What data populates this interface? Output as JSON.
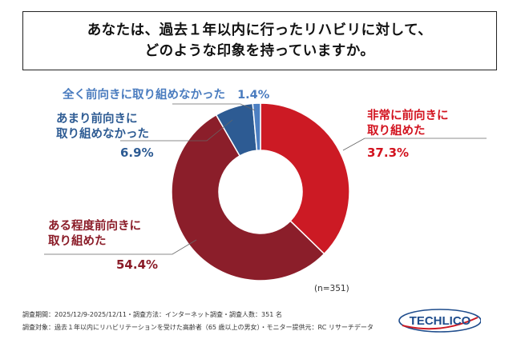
{
  "title": {
    "line1": "あなたは、過去１年以内に行ったリハビリに対して、",
    "line2": "どのような印象を持っていますか。"
  },
  "chart_data": {
    "type": "pie",
    "donut": true,
    "slices": [
      {
        "label": "非常に前向きに取り組めた",
        "label_lines": [
          "非常に前向きに",
          "取り組めた"
        ],
        "value": 37.3,
        "value_text": "37.3%",
        "color": "#cc1a24",
        "text_color": "#d2121e"
      },
      {
        "label": "ある程度前向きに取り組めた",
        "label_lines": [
          "ある程度前向きに",
          "取り組めた"
        ],
        "value": 54.4,
        "value_text": "54.4%",
        "color": "#8b1e2a",
        "text_color": "#8a1b27"
      },
      {
        "label": "あまり前向きに取り組めなかった",
        "label_lines": [
          "あまり前向きに",
          "取り組めなかった"
        ],
        "value": 6.9,
        "value_text": "6.9%",
        "color": "#2d5b93",
        "text_color": "#2d5b93"
      },
      {
        "label": "全く前向きに取り組めなかった",
        "label_lines": [
          "全く前向きに取り組めなかった"
        ],
        "value": 1.4,
        "value_text": "1.4%",
        "color": "#4c7fc2",
        "text_color": "#4a7cbf"
      }
    ],
    "n_note": "(n=351)"
  },
  "footer": {
    "line1": "調査期間：2025/12/9-2025/12/11・調査方法：インターネット調査・調査人数：351 名",
    "line2": "調査対象：過去１年以内にリハビリテーションを受けた高齢者（65 歳以上の男女）・モニター提供元：RC リサーチデータ"
  },
  "logo": {
    "text": "TECHLICO",
    "color": "#1e4c8c",
    "accent": "#cc1a24"
  }
}
